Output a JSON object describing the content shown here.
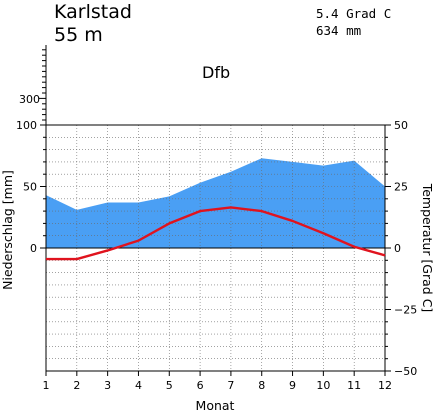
{
  "header": {
    "station": "Karlstad",
    "elevation": "55 m",
    "mean_temperature": "5.4 Grad C",
    "annual_precipitation": "634 mm",
    "climate_class": "Dfb"
  },
  "chart_data": {
    "type": "line",
    "categories": [
      "1",
      "2",
      "3",
      "4",
      "5",
      "6",
      "7",
      "8",
      "9",
      "10",
      "11",
      "12"
    ],
    "xlabel": "Monat",
    "ylabel_left": "Niederschlag [mm]",
    "ylabel_right": "Temperatur [Grad C]",
    "ylim_precip": [
      0,
      100
    ],
    "ylim_temp": [
      -50,
      50
    ],
    "precip_ticks": [
      "0",
      "50",
      "100"
    ],
    "precip_upper_ticks": [
      "300"
    ],
    "temp_ticks": [
      "50",
      "25",
      "0",
      "−25",
      "−50"
    ],
    "grid": true,
    "series": [
      {
        "kind": "area",
        "values": [
          43,
          31,
          37,
          37,
          42,
          53,
          62,
          73,
          70,
          67,
          71,
          50
        ],
        "color": "#4a9ff4"
      },
      {
        "kind": "line",
        "values": [
          -4.5,
          -4.5,
          -1,
          3,
          10,
          15,
          16.5,
          15,
          11,
          6,
          0.5,
          -3
        ],
        "color": "#e0131e"
      }
    ]
  }
}
